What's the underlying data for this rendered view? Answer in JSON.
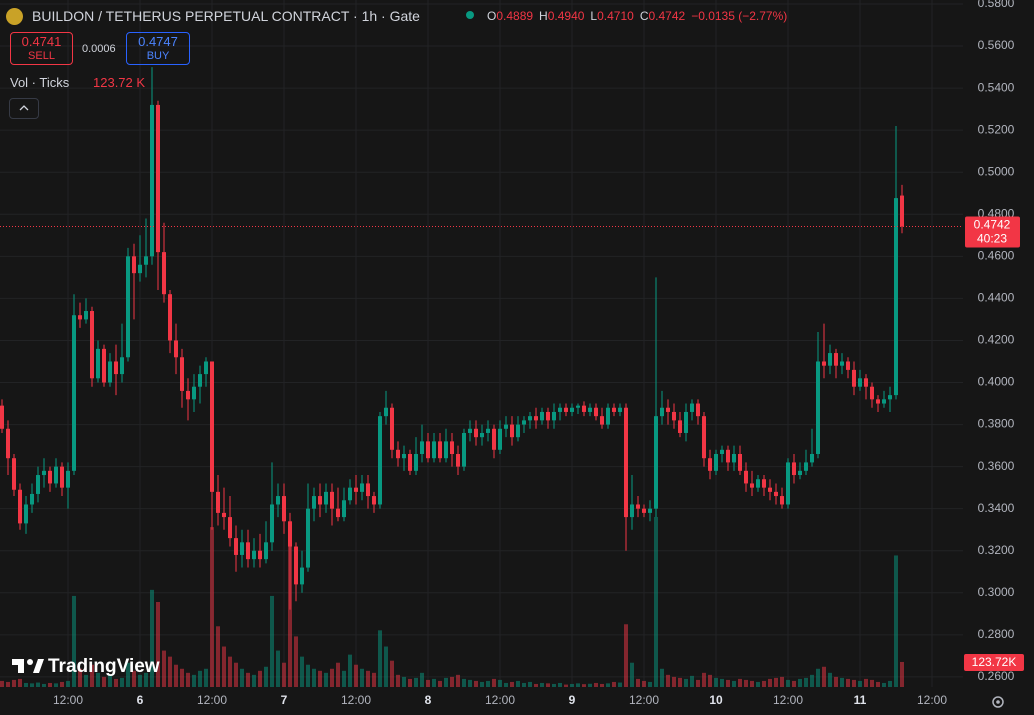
{
  "toolbar": {
    "title": "BUILDON / TETHERUS PERPETUAL CONTRACT · 1h · Gate",
    "ohlc": [
      {
        "key": "O",
        "value": "0.4889"
      },
      {
        "key": "H",
        "value": "0.4940"
      },
      {
        "key": "L",
        "value": "0.4710"
      },
      {
        "key": "C",
        "value": "0.4742"
      }
    ],
    "change": "−0.0135 (−2.77%)",
    "sell_price": "0.4741",
    "sell": "SELL",
    "spread": "0.0006",
    "buy_price": "0.4747",
    "buy": "BUY",
    "volume_title": "Vol · Ticks",
    "volume_value": "123.72 K",
    "brand": "TradingView"
  },
  "chart_data": {
    "type": "candlestick",
    "categories": [
      null,
      null,
      null,
      null,
      null,
      null,
      null,
      null,
      null,
      null,
      null,
      "12:00",
      null,
      null,
      null,
      null,
      null,
      null,
      null,
      null,
      null,
      null,
      null,
      "6",
      null,
      null,
      null,
      null,
      null,
      null,
      null,
      null,
      null,
      null,
      null,
      "12:00",
      null,
      null,
      null,
      null,
      null,
      null,
      null,
      null,
      null,
      null,
      null,
      "7",
      null,
      null,
      null,
      null,
      null,
      null,
      null,
      null,
      null,
      null,
      null,
      "12:00",
      null,
      null,
      null,
      null,
      null,
      null,
      null,
      null,
      null,
      null,
      null,
      "8",
      null,
      null,
      null,
      null,
      null,
      null,
      null,
      null,
      null,
      null,
      null,
      "12:00",
      null,
      null,
      null,
      null,
      null,
      null,
      null,
      null,
      null,
      null,
      null,
      "9",
      null,
      null,
      null,
      null,
      null,
      null,
      null,
      null,
      null,
      null,
      null,
      "12:00",
      null,
      null,
      null,
      null,
      null,
      null,
      null,
      null,
      null,
      null,
      null,
      "10",
      null,
      null,
      null,
      null,
      null,
      null,
      null,
      null,
      null,
      null,
      null,
      "12:00",
      null,
      null,
      null,
      null,
      null,
      null,
      null,
      null,
      null,
      null,
      null,
      "11",
      null,
      null,
      null,
      null,
      null,
      null,
      null,
      null,
      null,
      null,
      null,
      "12:00",
      null,
      null,
      null,
      null,
      null
    ],
    "open": [
      0.389,
      0.378,
      0.364,
      0.349,
      0.333,
      0.342,
      0.347,
      0.356,
      0.358,
      0.352,
      0.36,
      0.35,
      0.358,
      0.432,
      0.43,
      0.434,
      0.402,
      0.416,
      0.4,
      0.41,
      0.404,
      0.412,
      0.46,
      0.452,
      0.456,
      0.46,
      0.532,
      0.462,
      0.442,
      0.42,
      0.412,
      0.396,
      0.392,
      0.398,
      0.404,
      0.41,
      0.348,
      0.338,
      0.336,
      0.326,
      0.318,
      0.324,
      0.316,
      0.32,
      0.316,
      0.324,
      0.342,
      0.346,
      0.334,
      0.322,
      0.304,
      0.312,
      0.34,
      0.346,
      0.342,
      0.348,
      0.34,
      0.336,
      0.344,
      0.35,
      0.348,
      0.352,
      0.346,
      0.342,
      0.384,
      0.388,
      0.368,
      0.364,
      0.366,
      0.358,
      0.366,
      0.372,
      0.364,
      0.372,
      0.364,
      0.372,
      0.366,
      0.36,
      0.376,
      0.378,
      0.374,
      0.376,
      0.378,
      0.368,
      0.378,
      0.38,
      0.374,
      0.38,
      0.382,
      0.384,
      0.382,
      0.386,
      0.382,
      0.386,
      0.388,
      0.386,
      0.388,
      0.389,
      0.386,
      0.388,
      0.384,
      0.38,
      0.388,
      0.386,
      0.388,
      0.336,
      0.342,
      0.34,
      0.338,
      0.34,
      0.384,
      0.388,
      0.386,
      0.382,
      0.376,
      0.386,
      0.39,
      0.384,
      0.364,
      0.358,
      0.366,
      0.368,
      0.362,
      0.366,
      0.358,
      0.352,
      0.35,
      0.354,
      0.35,
      0.348,
      0.346,
      0.342,
      0.362,
      0.356,
      0.358,
      0.362,
      0.366,
      0.41,
      0.408,
      0.414,
      0.408,
      0.41,
      0.406,
      0.398,
      0.402,
      0.398,
      0.392,
      0.39,
      0.392,
      0.394,
      0.4889,
      null,
      null,
      null,
      null,
      null,
      null,
      null,
      null,
      null,
      null
    ],
    "high": [
      0.392,
      0.382,
      0.366,
      0.352,
      0.346,
      0.352,
      0.36,
      0.364,
      0.36,
      0.364,
      0.362,
      0.362,
      0.442,
      0.438,
      0.44,
      0.436,
      0.42,
      0.418,
      0.414,
      0.418,
      0.428,
      0.464,
      0.466,
      0.47,
      0.478,
      0.55,
      0.534,
      0.476,
      0.444,
      0.428,
      0.416,
      0.402,
      0.404,
      0.408,
      0.412,
      0.41,
      0.356,
      0.35,
      0.346,
      0.332,
      0.33,
      0.33,
      0.326,
      0.328,
      0.334,
      0.362,
      0.352,
      0.352,
      0.338,
      0.324,
      0.32,
      0.352,
      0.35,
      0.352,
      0.352,
      0.352,
      0.35,
      0.35,
      0.354,
      0.356,
      0.356,
      0.356,
      0.348,
      0.386,
      0.396,
      0.39,
      0.372,
      0.37,
      0.368,
      0.374,
      0.38,
      0.376,
      0.376,
      0.376,
      0.378,
      0.376,
      0.37,
      0.378,
      0.382,
      0.382,
      0.38,
      0.382,
      0.38,
      0.382,
      0.384,
      0.384,
      0.384,
      0.384,
      0.386,
      0.388,
      0.388,
      0.388,
      0.39,
      0.39,
      0.39,
      0.39,
      0.39,
      0.391,
      0.39,
      0.39,
      0.388,
      0.39,
      0.39,
      0.39,
      0.39,
      0.356,
      0.346,
      0.342,
      0.344,
      0.45,
      0.396,
      0.392,
      0.39,
      0.386,
      0.39,
      0.392,
      0.392,
      0.386,
      0.368,
      0.368,
      0.37,
      0.37,
      0.37,
      0.37,
      0.362,
      0.358,
      0.356,
      0.356,
      0.354,
      0.352,
      0.35,
      0.364,
      0.366,
      0.362,
      0.368,
      0.378,
      0.424,
      0.428,
      0.418,
      0.416,
      0.414,
      0.412,
      0.41,
      0.406,
      0.404,
      0.4,
      0.394,
      0.396,
      0.398,
      0.522,
      0.494,
      null,
      null,
      null,
      null,
      null,
      null,
      null,
      null,
      null,
      null
    ],
    "low": [
      0.376,
      0.356,
      0.346,
      0.33,
      0.328,
      0.338,
      0.343,
      0.35,
      0.348,
      0.35,
      0.346,
      0.34,
      0.356,
      0.426,
      0.428,
      0.398,
      0.4,
      0.398,
      0.398,
      0.394,
      0.4,
      0.41,
      0.43,
      0.448,
      0.45,
      0.456,
      0.444,
      0.438,
      0.414,
      0.404,
      0.388,
      0.382,
      0.386,
      0.39,
      0.398,
      0.33,
      0.332,
      0.33,
      0.322,
      0.31,
      0.312,
      0.312,
      0.312,
      0.312,
      0.314,
      0.32,
      0.336,
      0.328,
      0.292,
      0.296,
      0.3,
      0.31,
      0.334,
      0.336,
      0.338,
      0.332,
      0.334,
      0.334,
      0.342,
      0.342,
      0.344,
      0.34,
      0.338,
      0.34,
      0.38,
      0.364,
      0.36,
      0.358,
      0.356,
      0.356,
      0.362,
      0.362,
      0.362,
      0.362,
      0.362,
      0.36,
      0.356,
      0.358,
      0.372,
      0.37,
      0.37,
      0.372,
      0.364,
      0.366,
      0.374,
      0.37,
      0.372,
      0.376,
      0.378,
      0.378,
      0.38,
      0.378,
      0.378,
      0.382,
      0.384,
      0.384,
      0.385,
      0.384,
      0.384,
      0.382,
      0.378,
      0.378,
      0.384,
      0.384,
      0.32,
      0.33,
      0.336,
      0.336,
      0.334,
      0.336,
      0.38,
      0.38,
      0.378,
      0.374,
      0.372,
      0.382,
      0.38,
      0.36,
      0.354,
      0.356,
      0.362,
      0.358,
      0.358,
      0.356,
      0.348,
      0.346,
      0.348,
      0.346,
      0.344,
      0.342,
      0.34,
      0.34,
      0.352,
      0.354,
      0.356,
      0.36,
      0.364,
      0.402,
      0.404,
      0.402,
      0.404,
      0.402,
      0.394,
      0.396,
      0.392,
      0.388,
      0.386,
      0.388,
      0.386,
      0.392,
      0.471,
      null,
      null,
      null,
      null,
      null,
      null,
      null,
      null,
      null,
      null
    ],
    "close": [
      0.378,
      0.364,
      0.349,
      0.333,
      0.342,
      0.347,
      0.356,
      0.358,
      0.352,
      0.36,
      0.35,
      0.358,
      0.432,
      0.43,
      0.434,
      0.402,
      0.416,
      0.4,
      0.41,
      0.404,
      0.412,
      0.46,
      0.452,
      0.456,
      0.46,
      0.532,
      0.462,
      0.442,
      0.42,
      0.412,
      0.396,
      0.392,
      0.398,
      0.404,
      0.41,
      0.348,
      0.338,
      0.336,
      0.326,
      0.318,
      0.324,
      0.316,
      0.32,
      0.316,
      0.324,
      0.342,
      0.346,
      0.334,
      0.322,
      0.304,
      0.312,
      0.34,
      0.346,
      0.342,
      0.348,
      0.34,
      0.336,
      0.344,
      0.35,
      0.348,
      0.352,
      0.346,
      0.342,
      0.384,
      0.388,
      0.368,
      0.364,
      0.366,
      0.358,
      0.366,
      0.372,
      0.364,
      0.372,
      0.364,
      0.372,
      0.366,
      0.36,
      0.376,
      0.378,
      0.374,
      0.376,
      0.378,
      0.368,
      0.378,
      0.38,
      0.374,
      0.38,
      0.382,
      0.384,
      0.382,
      0.386,
      0.382,
      0.386,
      0.388,
      0.386,
      0.388,
      0.389,
      0.386,
      0.388,
      0.384,
      0.38,
      0.388,
      0.386,
      0.388,
      0.336,
      0.342,
      0.34,
      0.338,
      0.34,
      0.384,
      0.388,
      0.386,
      0.382,
      0.376,
      0.386,
      0.39,
      0.384,
      0.364,
      0.358,
      0.366,
      0.368,
      0.362,
      0.366,
      0.358,
      0.352,
      0.35,
      0.354,
      0.35,
      0.348,
      0.346,
      0.342,
      0.362,
      0.356,
      0.358,
      0.362,
      0.366,
      0.41,
      0.408,
      0.414,
      0.408,
      0.41,
      0.406,
      0.398,
      0.402,
      0.398,
      0.392,
      0.39,
      0.392,
      0.394,
      0.4877,
      0.4742,
      null,
      null,
      null,
      null,
      null,
      null,
      null,
      null,
      null,
      null
    ],
    "volume": [
      30000,
      25000,
      35000,
      40000,
      20000,
      18000,
      22000,
      15000,
      20000,
      18000,
      25000,
      30000,
      450000,
      90000,
      60000,
      110000,
      70000,
      50000,
      60000,
      40000,
      45000,
      120000,
      80000,
      60000,
      70000,
      480000,
      420000,
      180000,
      150000,
      110000,
      90000,
      70000,
      60000,
      80000,
      90000,
      790000,
      300000,
      200000,
      150000,
      120000,
      90000,
      70000,
      60000,
      80000,
      100000,
      450000,
      180000,
      120000,
      720000,
      250000,
      150000,
      110000,
      90000,
      80000,
      70000,
      90000,
      120000,
      80000,
      160000,
      110000,
      90000,
      80000,
      70000,
      280000,
      200000,
      130000,
      60000,
      50000,
      40000,
      45000,
      70000,
      35000,
      40000,
      30000,
      45000,
      50000,
      60000,
      40000,
      35000,
      30000,
      25000,
      30000,
      40000,
      35000,
      20000,
      25000,
      30000,
      20000,
      25000,
      15000,
      20000,
      18000,
      15000,
      20000,
      12000,
      15000,
      18000,
      14000,
      16000,
      20000,
      15000,
      18000,
      25000,
      22000,
      310000,
      120000,
      40000,
      30000,
      25000,
      840000,
      90000,
      60000,
      50000,
      45000,
      40000,
      55000,
      35000,
      70000,
      60000,
      45000,
      40000,
      35000,
      30000,
      40000,
      35000,
      30000,
      25000,
      30000,
      40000,
      45000,
      50000,
      35000,
      30000,
      40000,
      45000,
      60000,
      90000,
      100000,
      70000,
      50000,
      45000,
      40000,
      35000,
      30000,
      40000,
      35000,
      25000,
      20000,
      30000,
      650000,
      123720,
      null,
      null,
      null,
      null,
      null,
      null,
      null,
      null,
      null,
      null
    ],
    "volume_label": "123.72K",
    "countdown": "40:23",
    "up_color": "#089981",
    "down_color": "#f23645",
    "ylim": [
      0.2552,
      0.5819
    ],
    "yticks": [
      {
        "value": 0.26,
        "label": "0.2600"
      },
      {
        "value": 0.28,
        "label": "0.2800"
      },
      {
        "value": 0.3,
        "label": "0.3000"
      },
      {
        "value": 0.32,
        "label": "0.3200"
      },
      {
        "value": 0.34,
        "label": "0.3400"
      },
      {
        "value": 0.36,
        "label": "0.3600"
      },
      {
        "value": 0.38,
        "label": "0.3800"
      },
      {
        "value": 0.4,
        "label": "0.4000"
      },
      {
        "value": 0.42,
        "label": "0.4200"
      },
      {
        "value": 0.44,
        "label": "0.4400"
      },
      {
        "value": 0.46,
        "label": "0.4600"
      },
      {
        "value": 0.48,
        "label": "0.4800"
      },
      {
        "value": 0.5,
        "label": "0.5000"
      },
      {
        "value": 0.52,
        "label": "0.5200"
      },
      {
        "value": 0.54,
        "label": "0.5400"
      },
      {
        "value": 0.56,
        "label": "0.5600"
      },
      {
        "value": 0.58,
        "label": "0.5800"
      }
    ],
    "grid": true
  }
}
